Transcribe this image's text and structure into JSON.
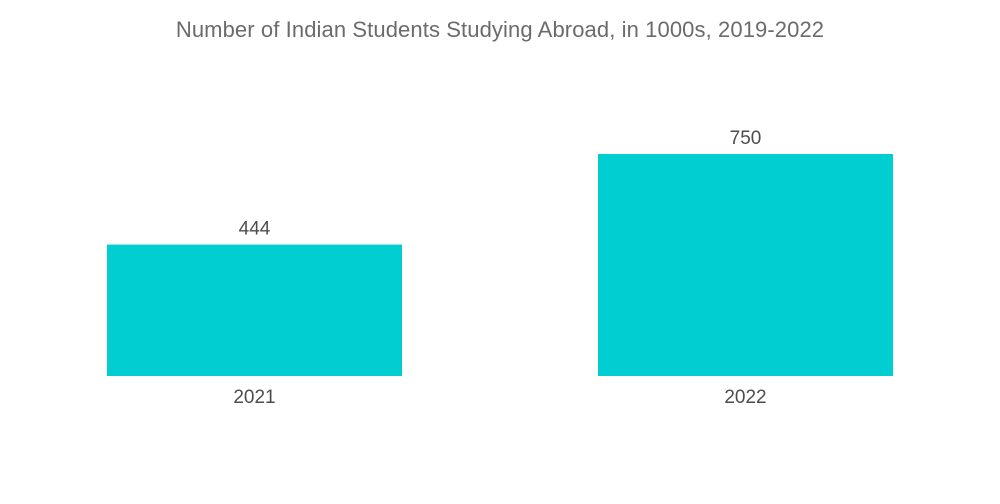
{
  "chart_data": {
    "type": "bar",
    "title": "Number of Indian Students Studying Abroad, in 1000s, 2019-2022",
    "categories": [
      "2021",
      "2022"
    ],
    "values": [
      444,
      750
    ],
    "data_labels": [
      "444",
      "750"
    ],
    "xlabel": "",
    "ylabel": "",
    "ylim": [
      0,
      750
    ],
    "grid": false,
    "legend": "none",
    "bar_color": "#00CED1"
  }
}
